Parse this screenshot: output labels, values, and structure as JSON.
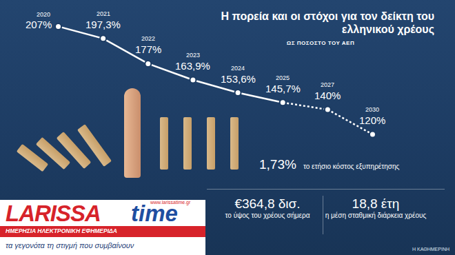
{
  "chart_data": {
    "type": "line",
    "title": "Η πορεία και οι στόχοι για τον δείκτη του ελληνικού χρέους",
    "subtitle": "ΩΣ ΠΟΣΟΣΤΟ ΤΟΥ ΑΕΠ",
    "categories": [
      "2020",
      "2021",
      "2022",
      "2023",
      "2024",
      "2025",
      "2027",
      "2030"
    ],
    "series": [
      {
        "values": [
          207,
          197.3,
          177,
          163.9,
          153.6,
          145.7,
          null,
          null
        ],
        "value_labels": [
          "207%",
          "197,3%",
          "177%",
          "163,9%",
          "153,6%",
          "145,7%",
          null,
          null
        ],
        "line_style": "solid",
        "color": "#ffffff"
      },
      {
        "values": [
          null,
          null,
          null,
          null,
          null,
          145.7,
          140,
          120
        ],
        "value_labels": [
          null,
          null,
          null,
          null,
          null,
          null,
          "140%",
          "120%"
        ],
        "line_style": "dashed",
        "color": "#ffffff"
      }
    ],
    "ylim": [
      100,
      220
    ],
    "tick_labels": false,
    "grid": false,
    "data_labels": true,
    "marker": "circle"
  },
  "facts": [
    {
      "value": "1,73%",
      "label": "το ετήσιο κόστος εξυπηρέτησης"
    },
    {
      "value": "€364,8 δισ.",
      "label": "το ύψος του χρέους σήμερα"
    },
    {
      "value": "18,8 έτη",
      "label": "η μέση σταθμική διάρκεια χρέους"
    }
  ],
  "source": "Η ΚΑΘΗΜΕΡΙΝΗ",
  "logo": {
    "name": "LARISSA",
    "name2": "time",
    "url": "www.larissatime.gr",
    "strip": "ΗΜΕΡΗΣΙΑ ΗΛΕΚΤΡΟΝΙΚΗ ΕΦΗΜΕΡΙΔΑ",
    "tagline": "τα γεγονότα τη στιγμή που συμβαίνουν"
  }
}
